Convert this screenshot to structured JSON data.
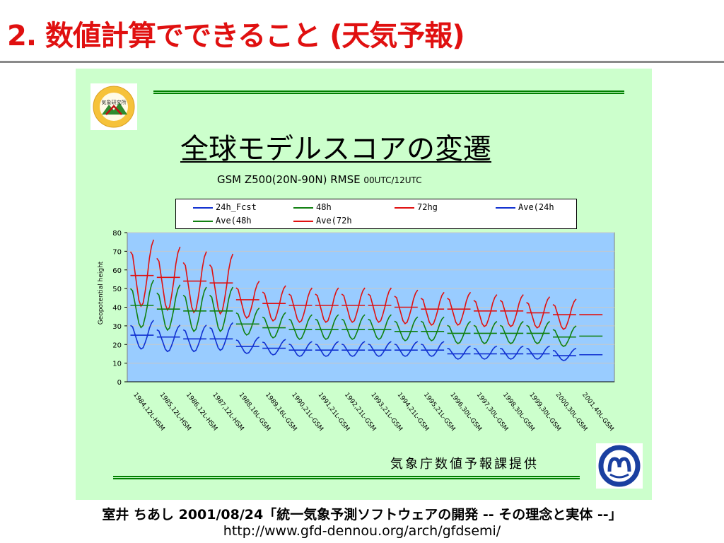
{
  "slide": {
    "title": "2. 数値計算でできること (天気予報)"
  },
  "chart_data": {
    "type": "line",
    "title": "全球モデルスコアの変遷",
    "subtitle": "GSM Z500(20N-90N) RMSE",
    "subtitle_small": "00UTC/12UTC",
    "ylabel": "Geopotential height",
    "ylim": [
      0,
      80
    ],
    "yticks": [
      0,
      10,
      20,
      30,
      40,
      50,
      60,
      70,
      80
    ],
    "grid": "horizontal",
    "legend_position": "top",
    "categories": [
      "1984,12L-HSM",
      "1985,12L-HSM",
      "1986,12L-HSM",
      "1987,12L-HSM",
      "1988,16L-GSM",
      "1989,16L-GSM",
      "1990,21L-GSM",
      "1991,21L-GSM",
      "1992,21L-GSM",
      "1993,21L-GSM",
      "1994,21L-GSM",
      "1995,21L-GSM",
      "1996,30L-GSM",
      "1997,30L-GSM",
      "1998,30L-GSM",
      "1999,30L-GSM",
      "2000,30L-GSM",
      "2001,40L-GSM"
    ],
    "monthly_pattern": [
      1.12,
      1.1,
      1.0,
      0.9,
      0.8,
      0.76,
      0.78,
      0.86,
      0.96,
      1.08,
      1.16,
      1.2
    ],
    "series": [
      {
        "name": "24h_Fcst",
        "color": "#1030d0",
        "kind": "monthly",
        "values": [
          26,
          24,
          24,
          25,
          20,
          19,
          18,
          18,
          18,
          18,
          18,
          18,
          16,
          16,
          16,
          16,
          15,
          null
        ]
      },
      {
        "name": "48h",
        "color": "#108010",
        "kind": "monthly",
        "values": [
          43,
          41,
          40,
          40,
          33,
          31,
          30,
          30,
          30,
          30,
          29,
          29,
          27,
          27,
          27,
          27,
          25,
          null
        ]
      },
      {
        "name": "72hg",
        "color": "#e01010",
        "kind": "monthly",
        "values": [
          60,
          57,
          55,
          54,
          45,
          43,
          42,
          42,
          42,
          42,
          41,
          40,
          40,
          39,
          39,
          38,
          37,
          null
        ]
      },
      {
        "name": "Ave(24h",
        "color": "#1030d0",
        "kind": "annual",
        "values": [
          25,
          24,
          23,
          23,
          19,
          18,
          17,
          17,
          17,
          17,
          17,
          17,
          15,
          15,
          15,
          15,
          14,
          14.5
        ]
      },
      {
        "name": "Ave(48h",
        "color": "#108010",
        "kind": "annual",
        "values": [
          41,
          39,
          38,
          38,
          31,
          29,
          28,
          28,
          28,
          28,
          27,
          27,
          26,
          26,
          26,
          26,
          24,
          24.5
        ]
      },
      {
        "name": "Ave(72h",
        "color": "#e01010",
        "kind": "annual",
        "values": [
          57,
          56,
          54,
          53,
          44,
          42,
          41,
          41,
          41,
          41,
          40,
          39,
          39,
          38,
          38,
          37,
          36,
          36
        ]
      }
    ]
  },
  "credit": "気象庁数値予報課提供",
  "footer": {
    "line1": "室井 ちあし 2001/08/24「統一気象予測ソフトウェアの開発 -- その理念と実体 --」",
    "line2": "http://www.gfd-dennou.org/arch/gfdsemi/"
  },
  "logos": {
    "left": "気象研究所",
    "right_icon": "jma-logo-icon"
  },
  "colors": {
    "title": "#e01010",
    "panel": "#ccffcc",
    "plot_bg": "#99ccff",
    "rule": "#008000"
  }
}
